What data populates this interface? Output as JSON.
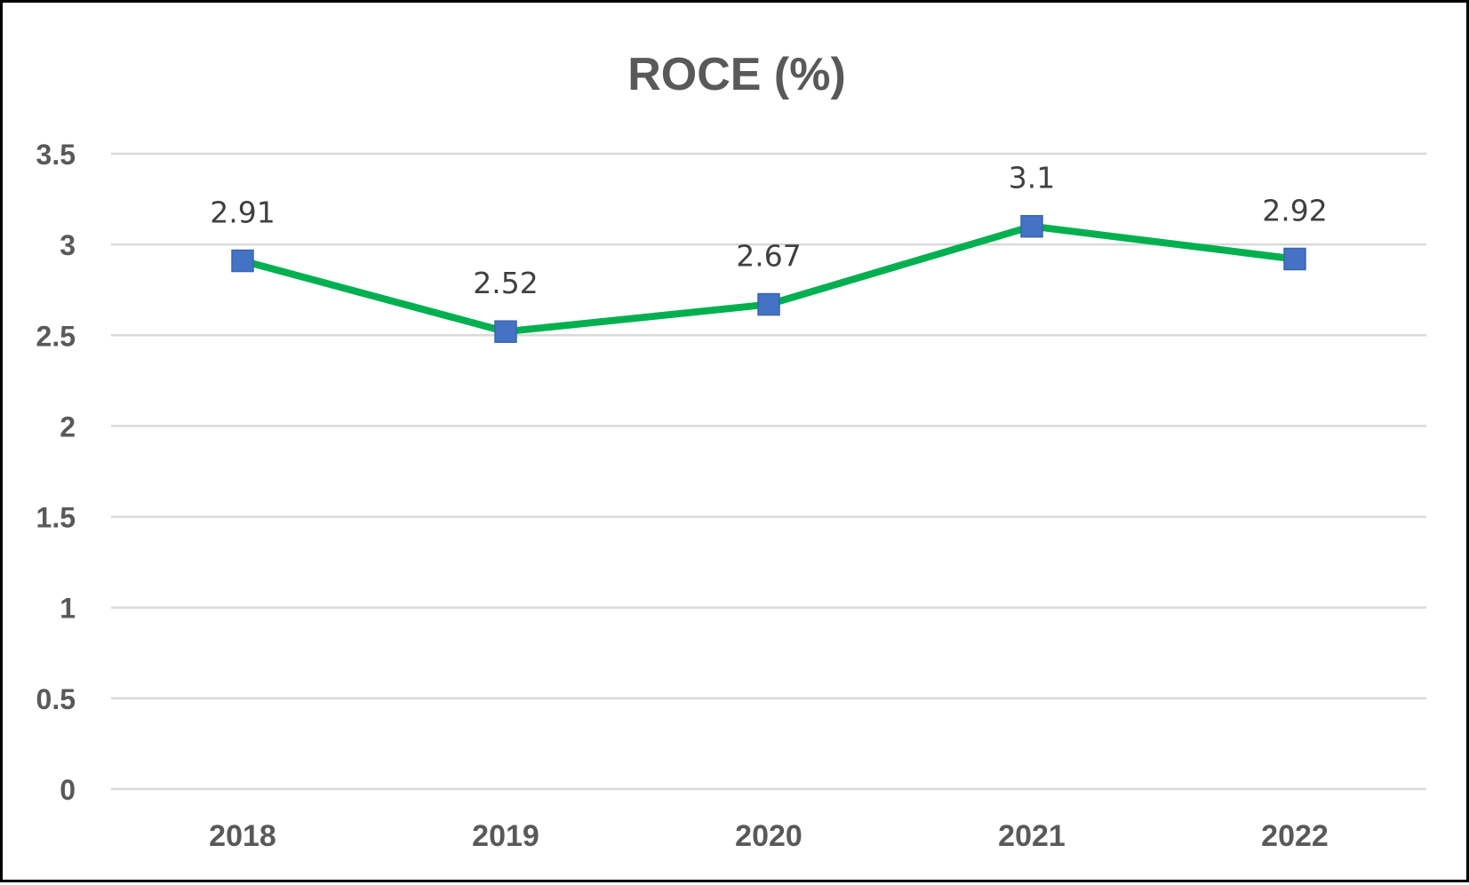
{
  "chart_data": {
    "type": "line",
    "title": "ROCE (%)",
    "xlabel": "",
    "ylabel": "",
    "categories": [
      "2018",
      "2019",
      "2020",
      "2021",
      "2022"
    ],
    "series": [
      {
        "values": [
          2.91,
          2.52,
          2.67,
          3.1,
          2.92
        ],
        "data_labels": [
          "2.91",
          "2.52",
          "2.67",
          "3.1",
          "2.92"
        ],
        "line_color": "#00B050",
        "marker": "square",
        "marker_color": "#4472C4"
      }
    ],
    "ylim": [
      0,
      3.5
    ],
    "y_ticks": [
      0,
      0.5,
      1,
      1.5,
      2,
      2.5,
      3,
      3.5
    ],
    "y_tick_labels": [
      "0",
      "0.5",
      "1",
      "1.5",
      "2",
      "2.5",
      "3",
      "3.5"
    ],
    "grid": true,
    "legend": "none",
    "colors": {
      "gridline": "#D9D9D9",
      "text": "#595959",
      "border": "#000000"
    }
  }
}
